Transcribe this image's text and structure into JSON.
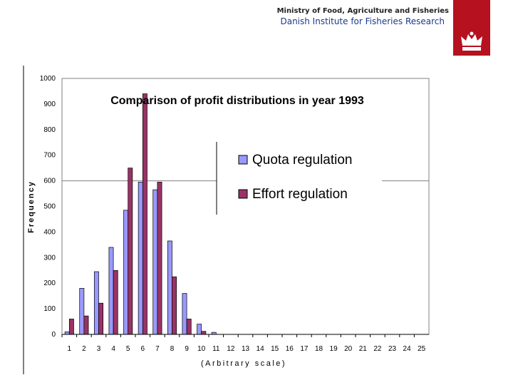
{
  "header": {
    "ministry": "Ministry of Food, Agriculture and Fisheries",
    "institute": "Danish Institute for Fisheries Research",
    "logo_icon": "crown-icon",
    "logo_color": "#b5111e"
  },
  "chart_data": {
    "type": "bar",
    "title": "Comparison of profit distributions in year 1993",
    "xlabel": "(Arbitrary scale)",
    "ylabel": "Frequency",
    "ylim": [
      0,
      1000
    ],
    "yticks": [
      0,
      100,
      200,
      300,
      400,
      500,
      600,
      700,
      800,
      900,
      1000
    ],
    "categories": [
      "1",
      "2",
      "3",
      "4",
      "5",
      "6",
      "7",
      "8",
      "9",
      "10",
      "11",
      "12",
      "13",
      "14",
      "15",
      "16",
      "17",
      "18",
      "19",
      "20",
      "21",
      "22",
      "23",
      "24",
      "25"
    ],
    "series": [
      {
        "name": "Quota regulation",
        "color": "#9999ff",
        "values": [
          10,
          180,
          245,
          340,
          485,
          595,
          565,
          365,
          160,
          40,
          8,
          0,
          0,
          0,
          0,
          0,
          0,
          0,
          0,
          0,
          0,
          0,
          0,
          0,
          0
        ]
      },
      {
        "name": "Effort regulation",
        "color": "#993366",
        "values": [
          60,
          72,
          122,
          250,
          650,
          940,
          595,
          225,
          60,
          12,
          0,
          0,
          0,
          0,
          0,
          0,
          0,
          0,
          0,
          0,
          0,
          0,
          0,
          0,
          0
        ]
      }
    ],
    "grid": "horizontal line at 600",
    "legend_position": "right"
  }
}
